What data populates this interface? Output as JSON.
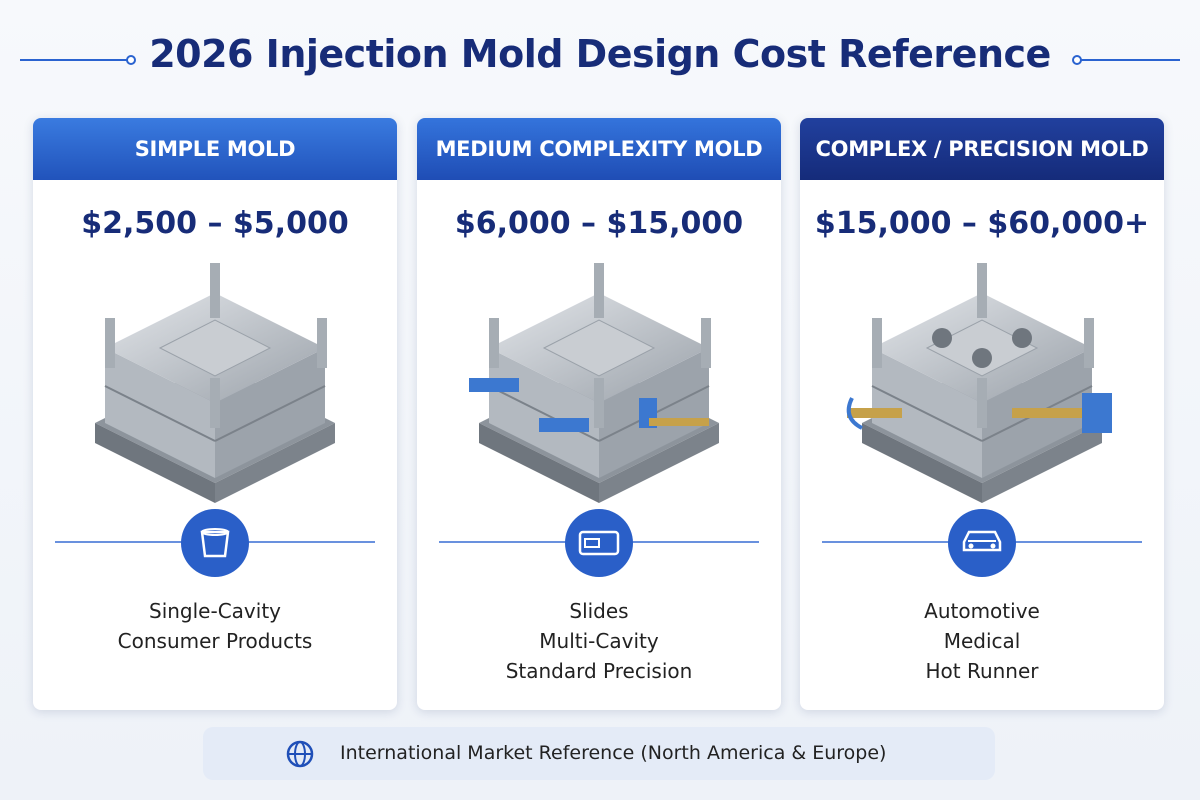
{
  "header": {
    "title": "2026 Injection Mold Design Cost Reference"
  },
  "cards": [
    {
      "label": "SIMPLE MOLD",
      "price": "$2,500 – $5,000",
      "features": [
        "Single-Cavity",
        "Consumer Products"
      ]
    },
    {
      "label": "MEDIUM COMPLEXITY MOLD",
      "price": "$6,000 – $15,000",
      "features": [
        "Slides",
        "Multi-Cavity",
        "Standard Precision"
      ]
    },
    {
      "label": "COMPLEX / PRECISION MOLD",
      "price": "$15,000 – $60,000+",
      "features": [
        "Automotive",
        "Medical",
        "Hot Runner"
      ]
    }
  ],
  "footer": {
    "note": "International Market Reference (North America & Europe)"
  }
}
